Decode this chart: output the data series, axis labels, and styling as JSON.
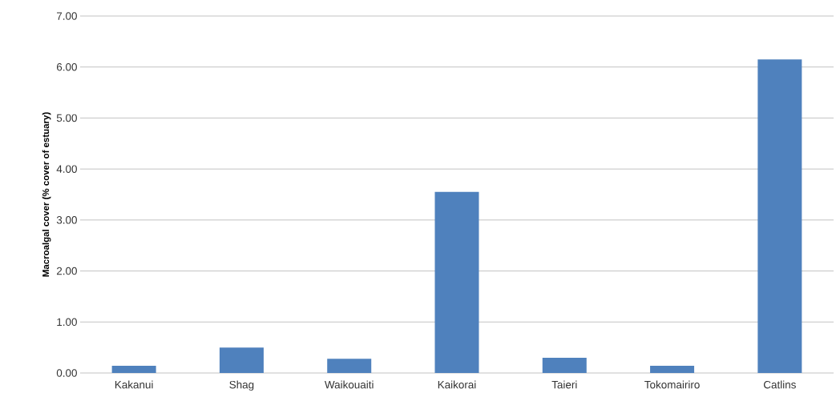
{
  "chart_data": {
    "type": "bar",
    "ylabel": "Macroalgal cover (% cover of estuary)",
    "categories": [
      "Kakanui",
      "Shag",
      "Waikouaiti",
      "Kaikorai",
      "Taieri",
      "Tokomairiro",
      "Catlins"
    ],
    "values": [
      0.14,
      0.5,
      0.28,
      3.55,
      0.3,
      0.14,
      6.15
    ],
    "color": "#4f81bd",
    "ylim": [
      0,
      7
    ],
    "yticks": [
      {
        "value": 0,
        "label": "0.00"
      },
      {
        "value": 1,
        "label": "1.00"
      },
      {
        "value": 2,
        "label": "2.00"
      },
      {
        "value": 3,
        "label": "3.00"
      },
      {
        "value": 4,
        "label": "4.00"
      },
      {
        "value": 5,
        "label": "5.00"
      },
      {
        "value": 6,
        "label": "6.00"
      },
      {
        "value": 7,
        "label": "7.00"
      }
    ],
    "grid": "y"
  }
}
